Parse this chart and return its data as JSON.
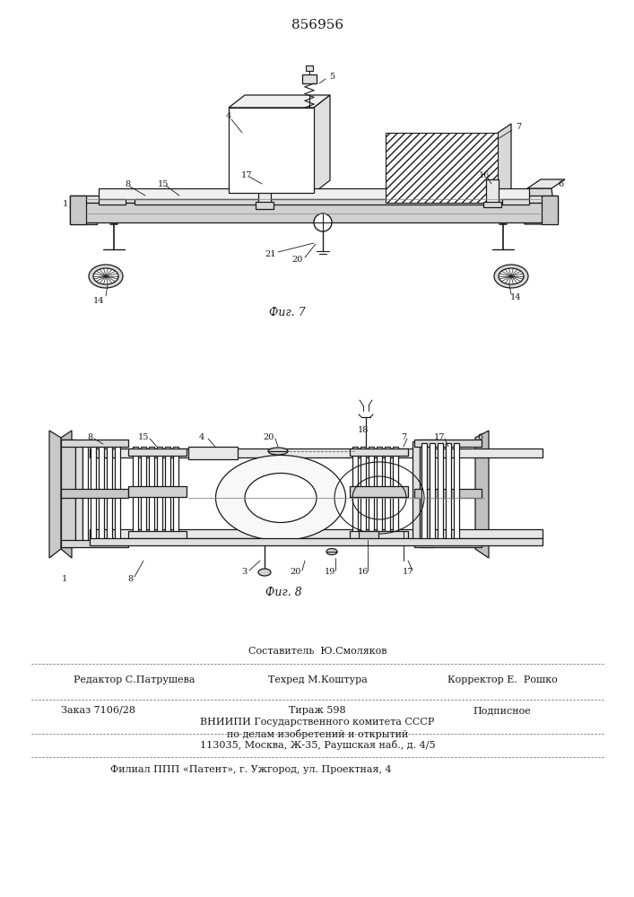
{
  "patent_number": "856956",
  "fig7_label": "Фиг. 7",
  "fig8_label": "Фиг. 8",
  "footer_line1_center": "Составитель  Ю.Смоляков",
  "footer_line2_left": "Редактор С.Патрушева",
  "footer_line2_center": "Техред М.Коштура",
  "footer_line2_right": "Корректор Е.  Рошко",
  "footer_line4_left": "Заказ 7106/28",
  "footer_line4_center": "Тираж 598",
  "footer_line4_right": "Подписное",
  "footer_line5": "ВНИИПИ Государственного комитета СССР",
  "footer_line6": "по делам изобретений и открытий",
  "footer_line7": "113035, Москва, Ж-35, Раушская наб., д. 4/5",
  "footer_line9": "Филиал ППП «Патент», г. Ужгород, ул. Проектная, 4",
  "bg_color": "#ffffff",
  "line_color": "#1a1a1a"
}
